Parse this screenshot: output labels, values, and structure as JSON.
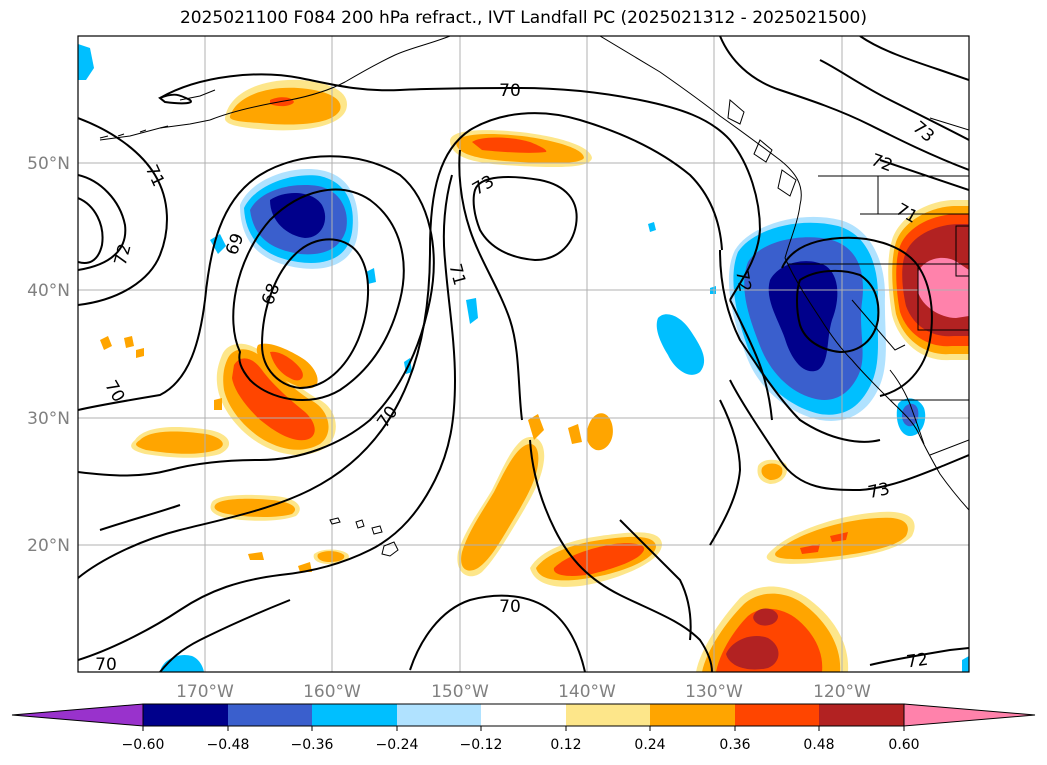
{
  "title": "2025021100 F084 200 hPa refract., IVT Landfall PC (2025021312 - 2025021500)",
  "map": {
    "lat_labels": [
      "50°N",
      "40°N",
      "30°N",
      "20°N"
    ],
    "lon_labels": [
      "170°W",
      "160°W",
      "150°W",
      "140°W",
      "130°W",
      "120°W"
    ],
    "contour_labels": [
      "70",
      "71",
      "72",
      "69",
      "68",
      "73",
      "70",
      "71",
      "72",
      "70",
      "73",
      "70",
      "72",
      "73",
      "72",
      "71",
      "70"
    ]
  },
  "colorbar": {
    "ticks": [
      "−0.60",
      "−0.48",
      "−0.36",
      "−0.24",
      "−0.12",
      "0.12",
      "0.24",
      "0.36",
      "0.48",
      "0.60"
    ],
    "colors": [
      "#9932cc",
      "#00008b",
      "#3a5fcd",
      "#00bfff",
      "#b0e2ff",
      "#ffffff",
      "#fde68a",
      "#ffa500",
      "#ff4500",
      "#b22222",
      "#ff82ab"
    ]
  },
  "palette": {
    "neg_dark": "#00008b",
    "neg_mid": "#3a5fcd",
    "neg_light": "#00bfff",
    "neg_pale": "#b0e2ff",
    "pos_pale": "#fde68a",
    "pos_light": "#ffa500",
    "pos_mid": "#ff4500",
    "pos_dark": "#b22222",
    "pos_pink": "#ff82ab"
  }
}
